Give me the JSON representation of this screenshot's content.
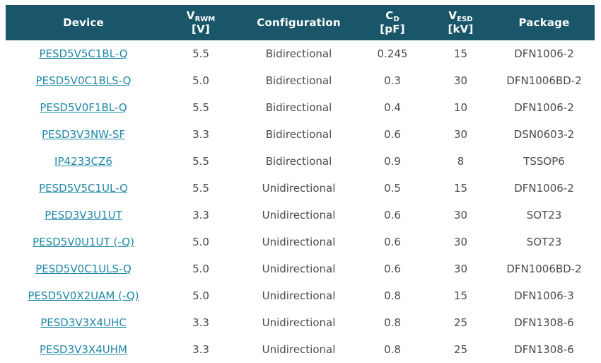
{
  "colors": {
    "header_bg": "#19566a",
    "header_text": "#ffffff",
    "link": "#2088a6",
    "body_text": "#4a4a4a"
  },
  "table": {
    "columns": [
      {
        "key": "device",
        "label": "Device",
        "sub": "",
        "unit": ""
      },
      {
        "key": "vrwm",
        "label": "V",
        "sub": "RWM",
        "unit": "[V]"
      },
      {
        "key": "configuration",
        "label": "Configuration",
        "sub": "",
        "unit": ""
      },
      {
        "key": "cd",
        "label": "C",
        "sub": "D",
        "unit": "[pF]"
      },
      {
        "key": "vesd",
        "label": "V",
        "sub": "ESD",
        "unit": "[kV]"
      },
      {
        "key": "package",
        "label": "Package",
        "sub": "",
        "unit": ""
      }
    ],
    "rows": [
      {
        "device": "PESD5V5C1BL-Q",
        "vrwm": "5.5",
        "configuration": "Bidirectional",
        "cd": "0.245",
        "vesd": "15",
        "package": "DFN1006-2"
      },
      {
        "device": "PESD5V0C1BLS-Q",
        "vrwm": "5.0",
        "configuration": "Bidirectional",
        "cd": "0.3",
        "vesd": "30",
        "package": "DFN1006BD-2"
      },
      {
        "device": "PESD5V0F1BL-Q",
        "vrwm": "5.5",
        "configuration": "Bidirectional",
        "cd": "0.4",
        "vesd": "10",
        "package": "DFN1006-2"
      },
      {
        "device": "PESD3V3NW-SF",
        "vrwm": "3.3",
        "configuration": "Bidirectional",
        "cd": "0.6",
        "vesd": "30",
        "package": "DSN0603-2"
      },
      {
        "device": "IP4233CZ6",
        "vrwm": "5.5",
        "configuration": "Bidirectional",
        "cd": "0.9",
        "vesd": "8",
        "package": "TSSOP6"
      },
      {
        "device": "PESD5V5C1UL-Q",
        "vrwm": "5.5",
        "configuration": "Unidirectional",
        "cd": "0.5",
        "vesd": "15",
        "package": "DFN1006-2"
      },
      {
        "device": "PESD3V3U1UT",
        "vrwm": "3.3",
        "configuration": "Unidirectional",
        "cd": "0.6",
        "vesd": "30",
        "package": "SOT23"
      },
      {
        "device": "PESD5V0U1UT (-Q)",
        "vrwm": "5.0",
        "configuration": "Unidirectional",
        "cd": "0.6",
        "vesd": "30",
        "package": "SOT23"
      },
      {
        "device": "PESD5V0C1ULS-Q",
        "vrwm": "5.0",
        "configuration": "Unidirectional",
        "cd": "0.6",
        "vesd": "30",
        "package": "DFN1006BD-2"
      },
      {
        "device": "PESD5V0X2UAM (-Q)",
        "vrwm": "5.0",
        "configuration": "Unidirectional",
        "cd": "0.8",
        "vesd": "15",
        "package": "DFN1006-3"
      },
      {
        "device": "PESD3V3X4UHC",
        "vrwm": "3.3",
        "configuration": "Unidirectional",
        "cd": "0.8",
        "vesd": "25",
        "package": "DFN1308-6"
      },
      {
        "device": "PESD3V3X4UHM",
        "vrwm": "3.3",
        "configuration": "Unidirectional",
        "cd": "0.8",
        "vesd": "25",
        "package": "DFN1308-6"
      }
    ]
  }
}
